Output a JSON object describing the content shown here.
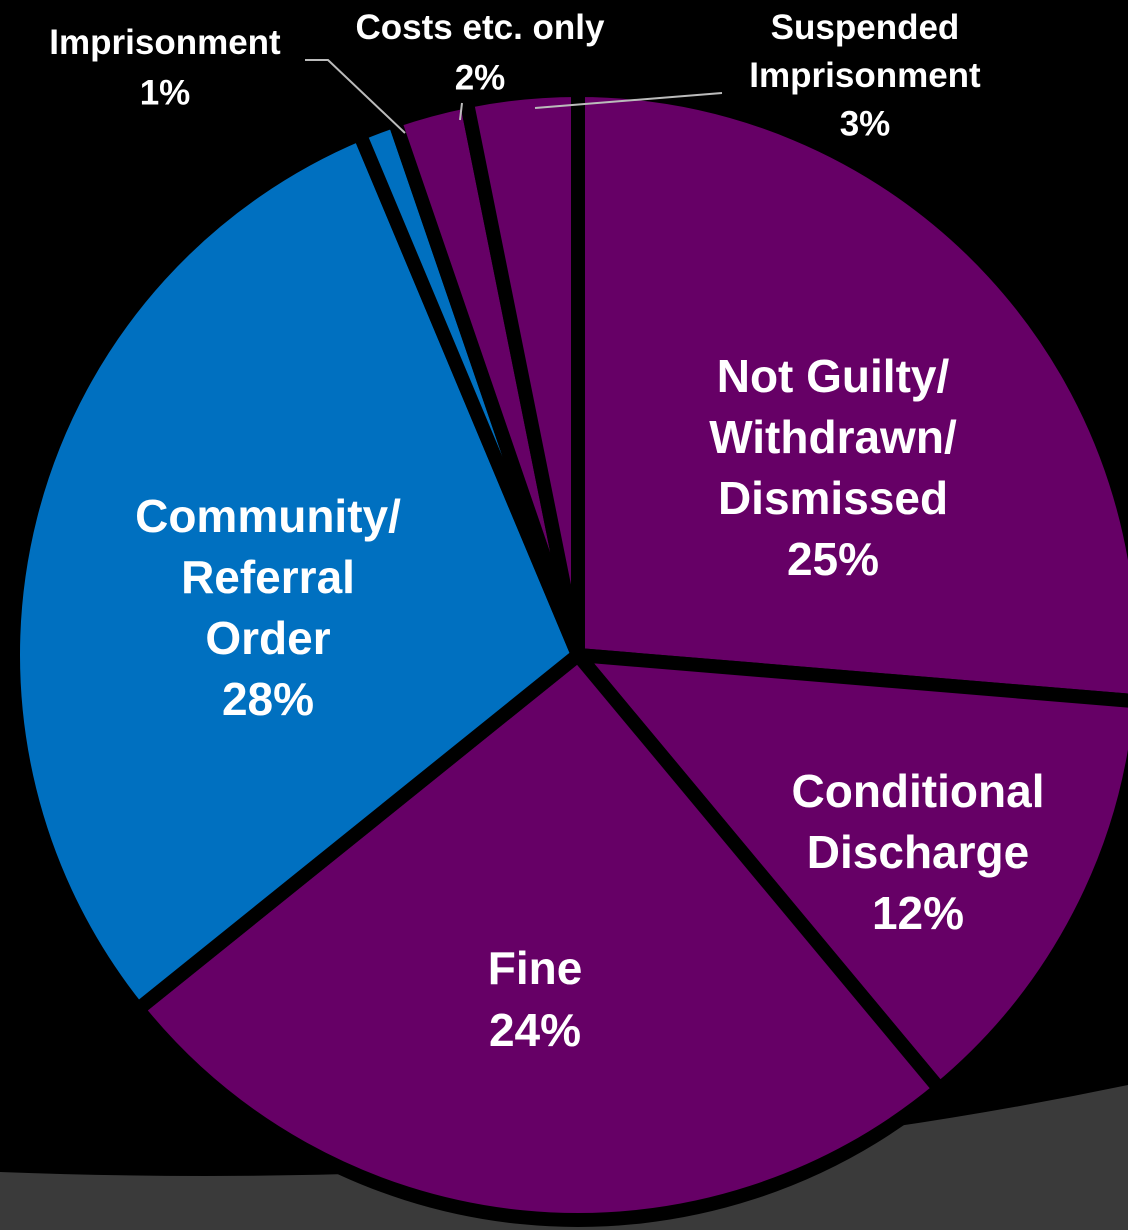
{
  "chart_data": {
    "type": "pie",
    "categories": [
      "Not Guilty/\nWithdrawn/\nDismissed",
      "Conditional\nDischarge",
      "Fine",
      "Community/\nReferral\nOrder",
      "Imprisonment",
      "Costs etc. only",
      "Suspended\nImprisonment"
    ],
    "values": [
      25,
      12,
      24,
      28,
      1,
      2,
      3
    ],
    "value_labels": [
      "25%",
      "12%",
      "24%",
      "28%",
      "1%",
      "2%",
      "3%"
    ],
    "colors": [
      "#660066",
      "#660066",
      "#660066",
      "#0070c0",
      "#0070c0",
      "#660066",
      "#660066"
    ]
  }
}
